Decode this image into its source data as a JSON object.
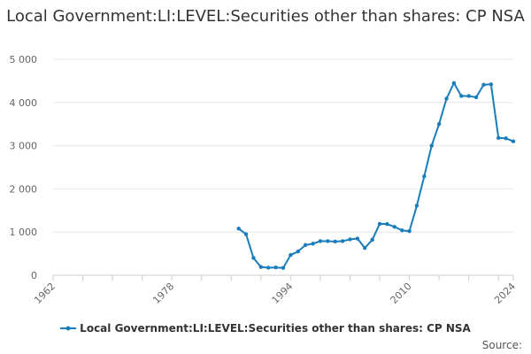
{
  "colors": {
    "series": "#1a7dbb",
    "grid": "#e6e6e6",
    "axis": "#cccccc",
    "text": "#666666"
  },
  "legend": {
    "label": "Local Government:LI:LEVEL:Securities other than shares: CP NSA"
  },
  "source": "Source:",
  "chart_data": {
    "type": "line",
    "title": "Local Government:LI:LEVEL:Securities other than shares: CP NSA",
    "xlabel": "",
    "ylabel": "",
    "xlim": [
      1962,
      2024
    ],
    "ylim": [
      0,
      5000
    ],
    "xticks": [
      1962,
      1978,
      1994,
      2010,
      2024
    ],
    "yticks": [
      {
        "v": 0,
        "label": "0"
      },
      {
        "v": 1000,
        "label": "1 000"
      },
      {
        "v": 2000,
        "label": "2 000"
      },
      {
        "v": 3000,
        "label": "3 000"
      },
      {
        "v": 4000,
        "label": "4 000"
      },
      {
        "v": 5000,
        "label": "5 000"
      }
    ],
    "series": [
      {
        "name": "Local Government:LI:LEVEL:Securities other than shares: CP NSA",
        "x": [
          1987,
          1988,
          1989,
          1990,
          1991,
          1992,
          1993,
          1994,
          1995,
          1996,
          1997,
          1998,
          1999,
          2000,
          2001,
          2002,
          2003,
          2004,
          2005,
          2006,
          2007,
          2008,
          2009,
          2010,
          2011,
          2012,
          2013,
          2014,
          2015,
          2016,
          2017,
          2018,
          2019,
          2020,
          2021,
          2022,
          2023,
          2024
        ],
        "values": [
          1080,
          950,
          400,
          190,
          175,
          180,
          170,
          470,
          550,
          700,
          730,
          790,
          790,
          780,
          790,
          830,
          850,
          630,
          820,
          1190,
          1185,
          1120,
          1040,
          1020,
          1610,
          2290,
          3000,
          3500,
          4090,
          4450,
          4150,
          4150,
          4120,
          4410,
          4420,
          3180,
          3170,
          3100
        ]
      }
    ]
  }
}
